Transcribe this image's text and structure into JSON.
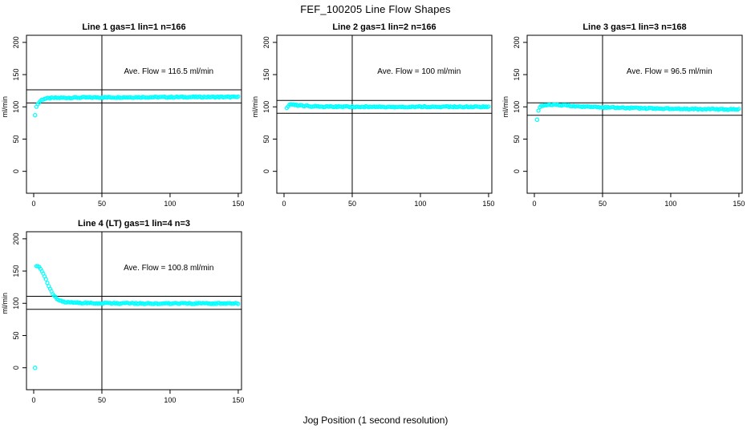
{
  "figure": {
    "title": "FEF_100205  Line Flow Shapes",
    "x_label": "Jog Position (1 second resolution)",
    "point_color": "#00ffff",
    "line_color": "#000000",
    "background": "#ffffff"
  },
  "chart_data": [
    {
      "type": "scatter",
      "title": "Line 1 gas=1 lin=1 n=166",
      "ylabel": "ml/min",
      "annotation": "Ave. Flow =  116.5  ml/min",
      "ave_flow_ml_min": 116.5,
      "n_points": 166,
      "grid": "off",
      "xlim": [
        -5.3,
        152.4
      ],
      "ylim": [
        -34,
        211
      ],
      "xticks": [
        0,
        50,
        100,
        150
      ],
      "yticks": [
        0,
        50,
        100,
        150,
        200
      ],
      "vline_x": 50,
      "hlines_y": [
        106,
        126.5
      ],
      "outlier_points": [
        [
          1,
          87
        ]
      ],
      "trend_points": [
        [
          2,
          101
        ],
        [
          3,
          104
        ],
        [
          4,
          107
        ],
        [
          5,
          109.5
        ],
        [
          6,
          111
        ],
        [
          8,
          112.5
        ],
        [
          10,
          113.2
        ],
        [
          15,
          113.8
        ],
        [
          25,
          114.2
        ],
        [
          40,
          114.5
        ],
        [
          60,
          114.8
        ],
        [
          90,
          115
        ],
        [
          120,
          115.3
        ],
        [
          150,
          115.3
        ]
      ],
      "samples_x_range": [
        2,
        150
      ]
    },
    {
      "type": "scatter",
      "title": "Line 2 gas=1 lin=2 n=166",
      "ylabel": "ml/min",
      "annotation": "Ave. Flow =  100  ml/min",
      "ave_flow_ml_min": 100,
      "n_points": 166,
      "grid": "off",
      "xlim": [
        -5.3,
        152.4
      ],
      "ylim": [
        -34,
        211
      ],
      "xticks": [
        0,
        50,
        100,
        150
      ],
      "yticks": [
        0,
        50,
        100,
        150,
        200
      ],
      "vline_x": 50,
      "hlines_y": [
        90,
        110
      ],
      "outlier_points": [],
      "trend_points": [
        [
          2,
          97.5
        ],
        [
          3,
          101
        ],
        [
          4,
          103.5
        ],
        [
          5,
          104
        ],
        [
          7,
          103.2
        ],
        [
          9,
          102.6
        ],
        [
          12,
          102
        ],
        [
          16,
          101.4
        ],
        [
          22,
          100.8
        ],
        [
          30,
          100.4
        ],
        [
          50,
          100.2
        ],
        [
          80,
          100.1
        ],
        [
          110,
          100.2
        ],
        [
          150,
          100.2
        ]
      ],
      "samples_x_range": [
        2,
        150
      ]
    },
    {
      "type": "scatter",
      "title": "Line 3 gas=1 lin=3 n=168",
      "ylabel": "ml/min",
      "annotation": "Ave. Flow =  96.5  ml/min",
      "ave_flow_ml_min": 96.5,
      "n_points": 168,
      "grid": "off",
      "xlim": [
        -5.3,
        152.4
      ],
      "ylim": [
        -34,
        211
      ],
      "xticks": [
        0,
        50,
        100,
        150
      ],
      "yticks": [
        0,
        50,
        100,
        150,
        200
      ],
      "vline_x": 50,
      "hlines_y": [
        87,
        106.2
      ],
      "outlier_points": [
        [
          2,
          80
        ]
      ],
      "trend_points": [
        [
          3,
          95
        ],
        [
          4,
          99
        ],
        [
          5,
          101
        ],
        [
          6,
          102
        ],
        [
          8,
          102.8
        ],
        [
          11,
          103.2
        ],
        [
          15,
          103.2
        ],
        [
          20,
          102.6
        ],
        [
          27,
          101.6
        ],
        [
          35,
          100.6
        ],
        [
          45,
          99.6
        ],
        [
          55,
          99
        ],
        [
          70,
          98.2
        ],
        [
          85,
          97.6
        ],
        [
          100,
          97.2
        ],
        [
          120,
          96.6
        ],
        [
          150,
          96
        ]
      ],
      "samples_x_range": [
        3,
        150
      ]
    },
    {
      "type": "scatter",
      "title": "Line 4 (LT) gas=1 lin=4 n=3",
      "ylabel": "ml/min",
      "annotation": "Ave. Flow =  100.8  ml/min",
      "ave_flow_ml_min": 100.8,
      "n_points": 3,
      "grid": "off",
      "xlim": [
        -5.3,
        152.4
      ],
      "ylim": [
        -34,
        211
      ],
      "xticks": [
        0,
        50,
        100,
        150
      ],
      "yticks": [
        0,
        50,
        100,
        150,
        200
      ],
      "vline_x": 50,
      "hlines_y": [
        90.7,
        110.9
      ],
      "outlier_points": [
        [
          1,
          0
        ]
      ],
      "trend_points": [
        [
          2,
          158
        ],
        [
          3,
          157.5
        ],
        [
          4,
          156
        ],
        [
          5,
          153.5
        ],
        [
          6,
          150
        ],
        [
          7,
          146
        ],
        [
          8,
          141.5
        ],
        [
          9,
          136.5
        ],
        [
          10,
          131.5
        ],
        [
          11,
          126.5
        ],
        [
          12,
          122
        ],
        [
          13,
          118
        ],
        [
          14,
          114.5
        ],
        [
          15,
          111.5
        ],
        [
          16,
          109
        ],
        [
          17,
          107
        ],
        [
          18,
          105.5
        ],
        [
          19,
          104.3
        ],
        [
          20,
          103.4
        ],
        [
          22,
          102.4
        ],
        [
          25,
          101.6
        ],
        [
          30,
          101
        ],
        [
          40,
          100.4
        ],
        [
          60,
          100
        ],
        [
          90,
          99.8
        ],
        [
          120,
          99.8
        ],
        [
          150,
          99.8
        ]
      ],
      "samples_x_range": [
        2,
        150
      ]
    }
  ]
}
